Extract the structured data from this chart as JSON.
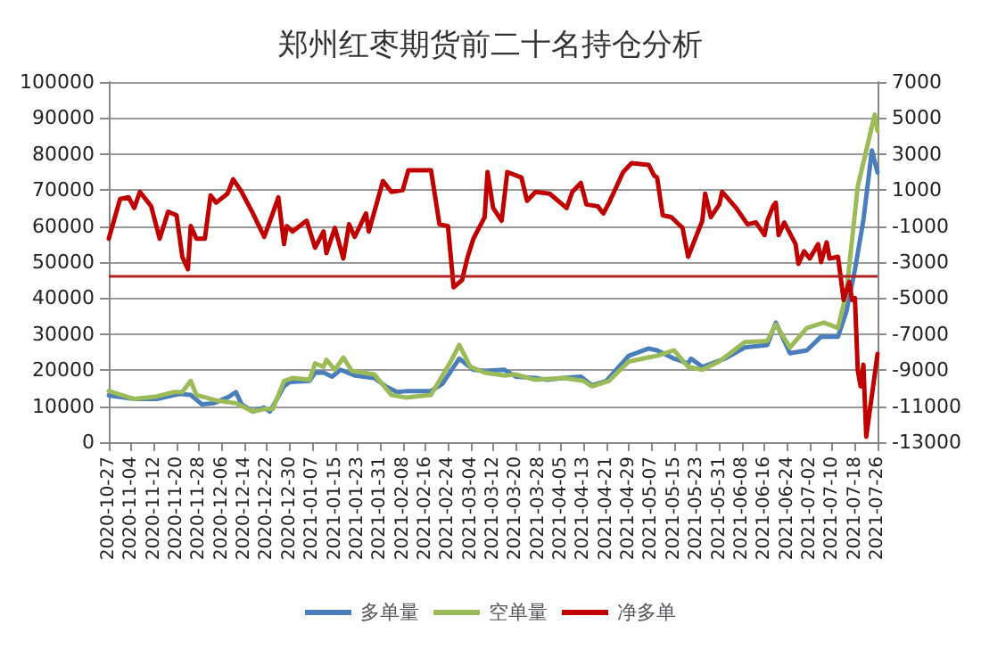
{
  "chart_data": {
    "type": "line",
    "title": "郑州红枣期货前二十名持仓分析",
    "xlim": [
      "2020-10-27",
      "2021-07-26"
    ],
    "xticks": [
      "2020-10-27",
      "2020-11-04",
      "2020-11-12",
      "2020-11-20",
      "2020-11-28",
      "2020-12-06",
      "2020-12-14",
      "2020-12-22",
      "2020-12-30",
      "2021-01-07",
      "2021-01-15",
      "2021-01-23",
      "2021-01-31",
      "2021-02-08",
      "2021-02-16",
      "2021-02-24",
      "2021-03-04",
      "2021-03-12",
      "2021-03-20",
      "2021-03-28",
      "2021-04-05",
      "2021-04-13",
      "2021-04-21",
      "2021-04-29",
      "2021-05-07",
      "2021-05-15",
      "2021-05-23",
      "2021-05-31",
      "2021-06-08",
      "2021-06-16",
      "2021-06-24",
      "2021-07-02",
      "2021-07-10",
      "2021-07-18",
      "2021-07-26"
    ],
    "ylim": [
      0,
      100000
    ],
    "yticks": [
      0,
      10000,
      20000,
      30000,
      40000,
      50000,
      60000,
      70000,
      80000,
      90000,
      100000
    ],
    "y2lim": [
      -13000,
      7000
    ],
    "y2ticks": [
      -13000,
      -11000,
      -9000,
      -7000,
      -5000,
      -3000,
      -1000,
      1000,
      3000,
      5000,
      7000
    ],
    "grid": "y",
    "legend": "bottom",
    "marker": "none",
    "line_style": "solid",
    "ref_lines": [
      {
        "axis": "y",
        "value": 46000,
        "color": "#b22222"
      }
    ],
    "series": [
      {
        "name": "多单量",
        "color": "#4a7ebb",
        "x": [
          "2020-10-27",
          "2020-11-05",
          "2020-11-13",
          "2020-11-21",
          "2020-11-25",
          "2020-11-29",
          "2020-12-03",
          "2020-12-08",
          "2020-12-11",
          "2020-12-13",
          "2020-12-17",
          "2020-12-21",
          "2020-12-23",
          "2020-12-28",
          "2020-12-30",
          "2021-01-06",
          "2021-01-08",
          "2021-01-11",
          "2021-01-14",
          "2021-01-17",
          "2021-01-22",
          "2021-01-29",
          "2021-02-02",
          "2021-02-06",
          "2021-02-10",
          "2021-02-18",
          "2021-02-22",
          "2021-02-28",
          "2021-03-05",
          "2021-03-09",
          "2021-03-16",
          "2021-03-20",
          "2021-03-27",
          "2021-03-31",
          "2021-04-06",
          "2021-04-12",
          "2021-04-16",
          "2021-04-21",
          "2021-04-29",
          "2021-05-06",
          "2021-05-09",
          "2021-05-15",
          "2021-05-20",
          "2021-05-21",
          "2021-05-25",
          "2021-06-02",
          "2021-06-09",
          "2021-06-17",
          "2021-06-20",
          "2021-06-25",
          "2021-07-01",
          "2021-07-06",
          "2021-07-12",
          "2021-07-15",
          "2021-07-18",
          "2021-07-21",
          "2021-07-24",
          "2021-07-26"
        ],
        "values": [
          13000,
          12000,
          12000,
          13400,
          13100,
          10500,
          10800,
          12400,
          13900,
          10500,
          8500,
          9600,
          8500,
          15500,
          16700,
          17000,
          19300,
          19300,
          18200,
          20100,
          18500,
          17800,
          15500,
          13900,
          14200,
          14200,
          16200,
          23200,
          20100,
          19800,
          20100,
          18200,
          17800,
          17300,
          17800,
          18200,
          15800,
          17000,
          24000,
          26000,
          25500,
          23200,
          21900,
          23200,
          20900,
          23200,
          26300,
          27000,
          33200,
          24700,
          25500,
          29300,
          29300,
          36300,
          47900,
          61700,
          81000,
          74900
        ]
      },
      {
        "name": "空单量",
        "color": "#9bbb59",
        "x": [
          "2020-10-27",
          "2020-11-05",
          "2020-11-13",
          "2020-11-19",
          "2020-11-22",
          "2020-11-25",
          "2020-11-27",
          "2020-12-04",
          "2020-12-11",
          "2020-12-17",
          "2020-12-21",
          "2020-12-24",
          "2020-12-28",
          "2020-12-31",
          "2021-01-06",
          "2021-01-08",
          "2021-01-11",
          "2021-01-12",
          "2021-01-15",
          "2021-01-18",
          "2021-01-21",
          "2021-01-29",
          "2021-02-04",
          "2021-02-09",
          "2021-02-18",
          "2021-02-25",
          "2021-02-28",
          "2021-03-04",
          "2021-03-09",
          "2021-03-16",
          "2021-03-20",
          "2021-03-27",
          "2021-04-06",
          "2021-04-13",
          "2021-04-16",
          "2021-04-22",
          "2021-04-29",
          "2021-05-09",
          "2021-05-15",
          "2021-05-20",
          "2021-05-25",
          "2021-05-31",
          "2021-06-09",
          "2021-06-17",
          "2021-06-20",
          "2021-06-25",
          "2021-07-01",
          "2021-07-07",
          "2021-07-12",
          "2021-07-15",
          "2021-07-19",
          "2021-07-25",
          "2021-07-26"
        ],
        "values": [
          14200,
          12000,
          12700,
          13900,
          13900,
          17000,
          13100,
          11600,
          10800,
          8500,
          9200,
          9200,
          17000,
          17800,
          17300,
          21900,
          20900,
          22900,
          20100,
          23500,
          19800,
          18800,
          13100,
          12400,
          13100,
          22400,
          27000,
          20900,
          19300,
          18500,
          18800,
          17300,
          17800,
          17000,
          15500,
          17000,
          22400,
          24000,
          25500,
          20900,
          20100,
          22400,
          27800,
          28100,
          32700,
          26300,
          31700,
          33200,
          31700,
          41700,
          71000,
          91000,
          86400
        ]
      },
      {
        "name": "净多单",
        "color": "#c00000",
        "axis": "y2",
        "x": [
          "2020-10-27",
          "2020-10-31",
          "2020-11-03",
          "2020-11-05",
          "2020-11-07",
          "2020-11-11",
          "2020-11-14",
          "2020-11-17",
          "2020-11-20",
          "2020-11-22",
          "2020-11-24",
          "2020-11-25",
          "2020-11-27",
          "2020-11-30",
          "2020-12-02",
          "2020-12-04",
          "2020-12-08",
          "2020-12-10",
          "2020-12-13",
          "2020-12-17",
          "2020-12-21",
          "2020-12-24",
          "2020-12-26",
          "2020-12-28",
          "2020-12-29",
          "2020-12-31",
          "2021-01-05",
          "2021-01-08",
          "2021-01-11",
          "2021-01-12",
          "2021-01-15",
          "2021-01-18",
          "2021-01-20",
          "2021-01-22",
          "2021-01-26",
          "2021-01-27",
          "2021-02-01",
          "2021-02-04",
          "2021-02-08",
          "2021-02-10",
          "2021-02-18",
          "2021-02-21",
          "2021-02-24",
          "2021-02-26",
          "2021-03-01",
          "2021-03-03",
          "2021-03-05",
          "2021-03-09",
          "2021-03-10",
          "2021-03-12",
          "2021-03-15",
          "2021-03-17",
          "2021-03-22",
          "2021-03-24",
          "2021-03-27",
          "2021-04-01",
          "2021-04-07",
          "2021-04-09",
          "2021-04-12",
          "2021-04-14",
          "2021-04-18",
          "2021-04-20",
          "2021-04-22",
          "2021-04-27",
          "2021-04-30",
          "2021-05-06",
          "2021-05-08",
          "2021-05-09",
          "2021-05-11",
          "2021-05-14",
          "2021-05-18",
          "2021-05-20",
          "2021-05-25",
          "2021-05-26",
          "2021-05-28",
          "2021-05-31",
          "2021-06-01",
          "2021-06-06",
          "2021-06-10",
          "2021-06-13",
          "2021-06-16",
          "2021-06-17",
          "2021-06-19",
          "2021-06-20",
          "2021-06-21",
          "2021-06-23",
          "2021-06-27",
          "2021-06-28",
          "2021-06-30",
          "2021-07-02",
          "2021-07-05",
          "2021-07-06",
          "2021-07-08",
          "2021-07-09",
          "2021-07-12",
          "2021-07-14",
          "2021-07-16",
          "2021-07-17",
          "2021-07-18",
          "2021-07-19",
          "2021-07-20",
          "2021-07-21",
          "2021-07-22",
          "2021-07-26"
        ],
        "values": [
          -1700,
          500,
          600,
          0,
          900,
          100,
          -1700,
          -200,
          -400,
          -2700,
          -3400,
          -1000,
          -1700,
          -1700,
          700,
          300,
          800,
          1600,
          900,
          -300,
          -1600,
          -300,
          600,
          -2000,
          -1000,
          -1300,
          -700,
          -2200,
          -1300,
          -2500,
          -1100,
          -2800,
          -900,
          -1600,
          -300,
          -1300,
          1500,
          900,
          1000,
          2100,
          2100,
          -900,
          -1000,
          -4400,
          -4000,
          -2700,
          -1700,
          -500,
          2000,
          0,
          -700,
          2000,
          1700,
          400,
          900,
          800,
          0,
          900,
          1400,
          200,
          100,
          -300,
          300,
          2000,
          2500,
          2400,
          1800,
          1700,
          -400,
          -500,
          -1100,
          -2700,
          -700,
          800,
          -500,
          200,
          900,
          0,
          -900,
          -800,
          -1500,
          -700,
          100,
          300,
          -1500,
          -800,
          -2000,
          -3100,
          -2400,
          -2800,
          -2000,
          -3000,
          -1900,
          -2800,
          -2700,
          -5100,
          -4100,
          -5100,
          -5000,
          -9000,
          -9900,
          -8700,
          -12700,
          -8100
        ]
      }
    ]
  }
}
